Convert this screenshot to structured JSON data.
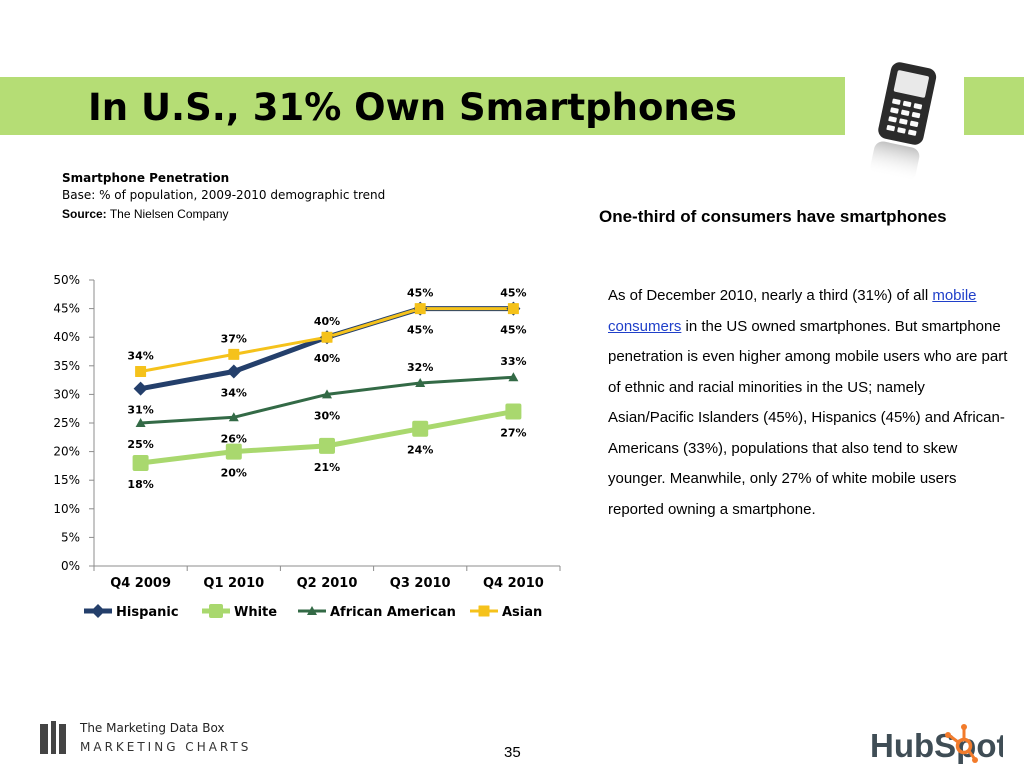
{
  "slide": {
    "title": "In U.S., 31% Own Smartphones",
    "page_number": "35",
    "accent_color": "#b5dd75"
  },
  "chart_header": {
    "heading": "Smartphone Penetration",
    "base": "Base: % of population, 2009-2010 demographic trend",
    "source_label": "Source:",
    "source_value": "The Nielsen Company"
  },
  "side": {
    "heading": "One-third of consumers have smartphones",
    "para_part1": "As of December 2010, nearly a third (31%) of all ",
    "link_text": "mobile consumers",
    "para_part2": " in the US owned smartphones. But smartphone penetration is even higher among mobile users who are part of ethnic and racial minorities in the US; namely Asian/Pacific Islanders (45%), Hispanics (45%) and African-Americans (33%), populations that also tend to skew younger. Meanwhile, only 27% of white mobile users reported owning a smartphone."
  },
  "footer": {
    "mdb_line1": "The Marketing Data Box",
    "mdb_line2": "MARKETING CHARTS",
    "hubspot_text": "HubSpot"
  },
  "chart_data": {
    "type": "line",
    "title": "Smartphone Penetration",
    "categories": [
      "Q4 2009",
      "Q1 2010",
      "Q2 2010",
      "Q3 2010",
      "Q4 2010"
    ],
    "ylim": [
      0,
      50
    ],
    "yticks": [
      "0%",
      "5%",
      "10%",
      "15%",
      "20%",
      "25%",
      "30%",
      "35%",
      "40%",
      "45%",
      "50%"
    ],
    "grid": false,
    "legend_position": "bottom",
    "series": [
      {
        "name": "Hispanic",
        "values": [
          31,
          34,
          40,
          45,
          45
        ],
        "labels": [
          "31%",
          "34%",
          "40%",
          "45%",
          "45%"
        ],
        "label_pos": "below",
        "color": "#243f6b",
        "marker": "diamond",
        "width": 5
      },
      {
        "name": "White",
        "values": [
          18,
          20,
          21,
          24,
          27
        ],
        "labels": [
          "18%",
          "20%",
          "21%",
          "24%",
          "27%"
        ],
        "label_pos": "below",
        "color": "#a9d86e",
        "marker": "square",
        "width": 5
      },
      {
        "name": "African American",
        "values": [
          25,
          26,
          30,
          32,
          33
        ],
        "labels": [
          "25%",
          "26%",
          "30%",
          "32%",
          "33%"
        ],
        "label_pos": "mixed",
        "color": "#336a46",
        "marker": "triangle",
        "width": 3
      },
      {
        "name": "Asian",
        "values": [
          34,
          37,
          40,
          45,
          45
        ],
        "labels": [
          "34%",
          "37%",
          "40%",
          "45%",
          "45%"
        ],
        "label_pos": "above",
        "color": "#f5c21b",
        "marker": "square",
        "width": 3
      }
    ]
  }
}
